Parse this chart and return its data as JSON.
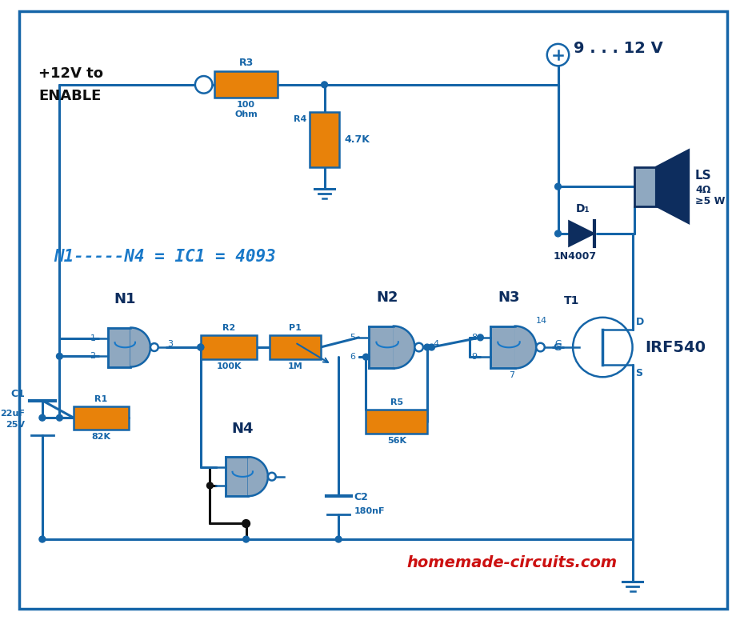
{
  "bg_color": "#ffffff",
  "line_color": "#1565a8",
  "orange": "#e8820a",
  "gray": "#8fa8c0",
  "dark_blue": "#0d2d5e",
  "bright_blue": "#1878c8",
  "red": "#cc1010",
  "black": "#101010",
  "voltage_label": "9 . . . 12 V",
  "ic_label": "N1-----N4 = IC1 = 4093",
  "mosfet_label": "IRF540",
  "enable_line1": "+12V to",
  "enable_line2": "ENABLE",
  "website": "homemade-circuits.com"
}
